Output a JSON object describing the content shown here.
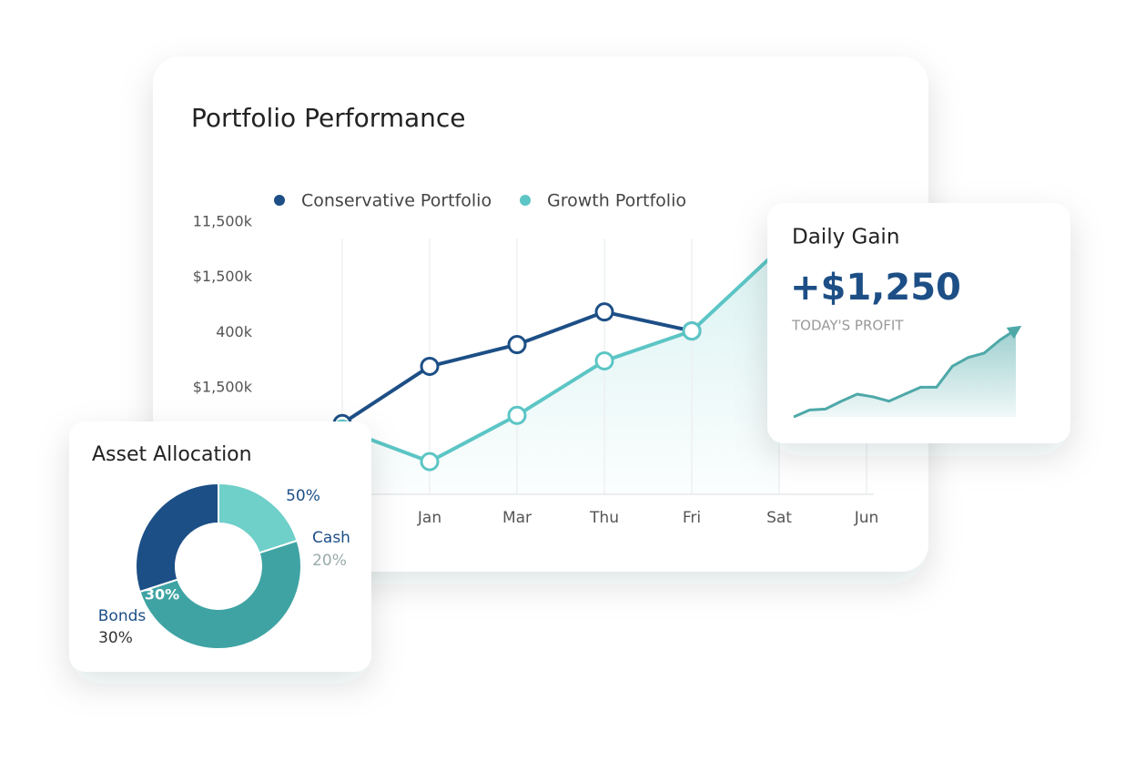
{
  "chart_data": [
    {
      "type": "line",
      "title": "Portfolio Performance",
      "categories": [
        null,
        "Jan",
        "Mar",
        "Thu",
        "Fri",
        "Sat",
        "Jun"
      ],
      "y_labels": [
        "11,500k",
        "$1,500k",
        "400k",
        "$1,500k"
      ],
      "ylim": [
        0,
        100
      ],
      "series": [
        {
          "name": "Conservative Portfolio",
          "color": "#1d4f86",
          "values": [
            26,
            47,
            55,
            67,
            60,
            null,
            null
          ]
        },
        {
          "name": "Growth Portfolio",
          "color": "#5cc5c5",
          "values": [
            24,
            12,
            29,
            49,
            60,
            90,
            null
          ]
        }
      ]
    },
    {
      "type": "donut",
      "title": "Asset Allocation",
      "categories": [
        "Cash",
        null,
        "Bonds"
      ],
      "values": [
        20,
        50,
        30
      ],
      "value_labels": [
        "20%",
        "50%",
        "30%"
      ],
      "colors": [
        "#6fcfc9",
        "#3fa3a3",
        "#1c4f86"
      ]
    },
    {
      "type": "area",
      "title": "Daily Gain",
      "value_text": "+$1,250",
      "subtitle": "TODAY'S PROFIT",
      "values": [
        0,
        8,
        9,
        18,
        26,
        23,
        18,
        26,
        34,
        34,
        58,
        68,
        73,
        88,
        100
      ],
      "ylim": [
        0,
        100
      ],
      "color": "#4ea8a8"
    }
  ]
}
